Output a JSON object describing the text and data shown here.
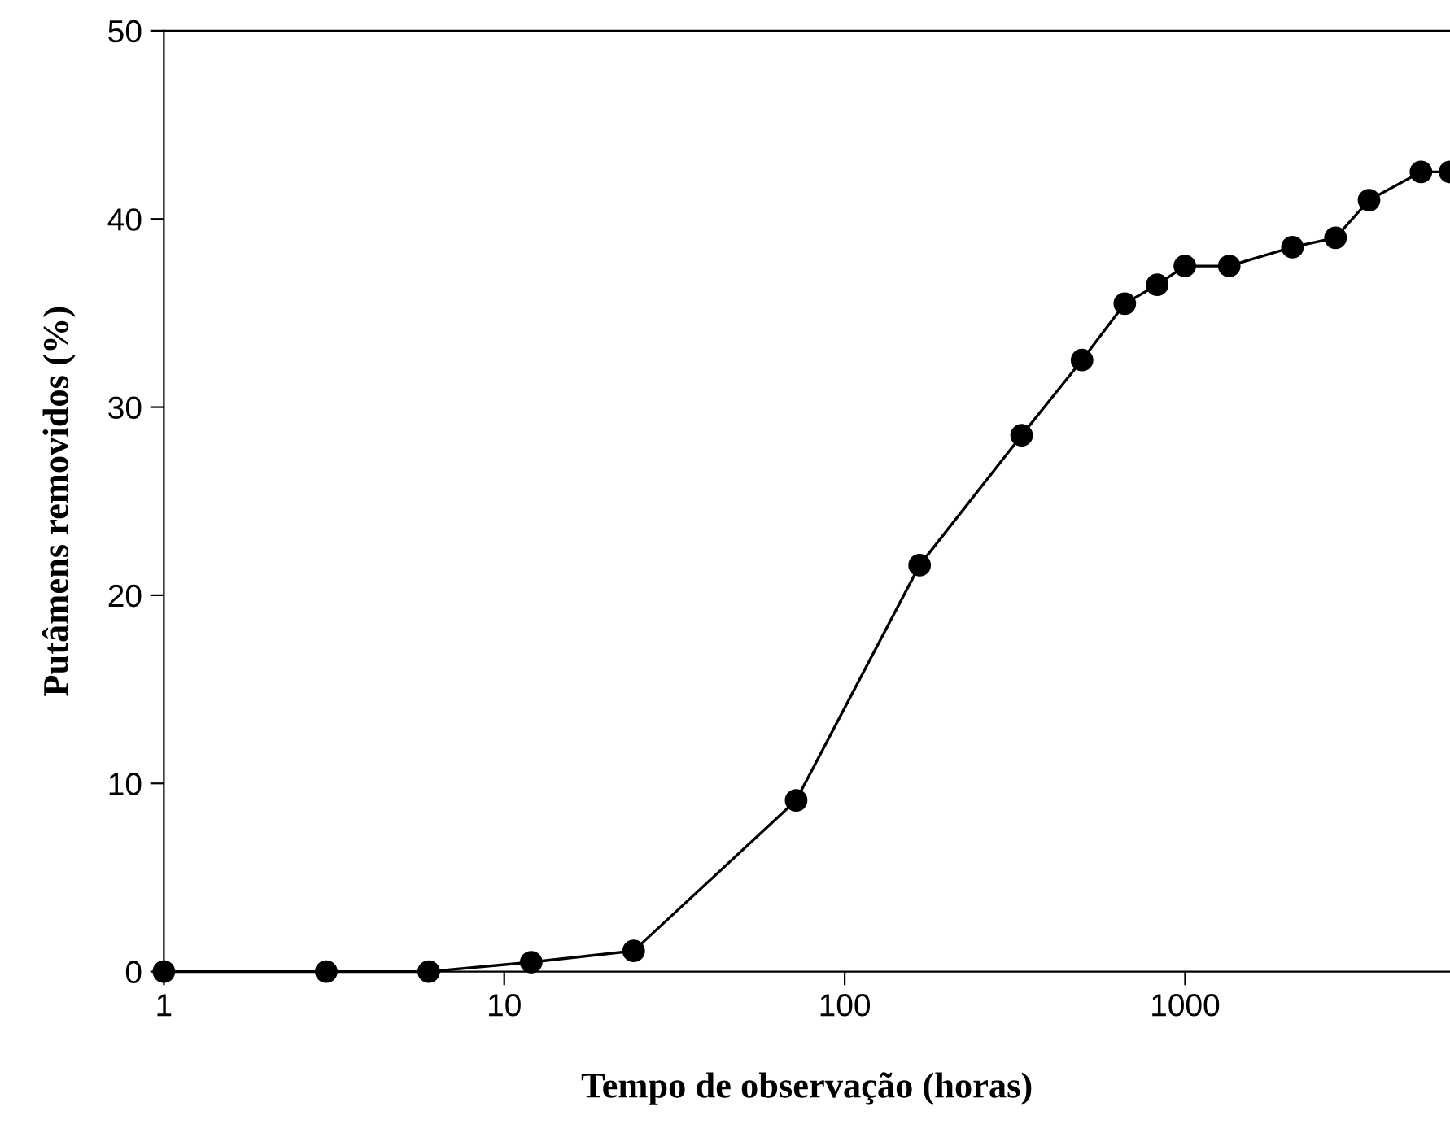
{
  "chart_data": {
    "type": "line",
    "xlabel": "Tempo de observação (horas)",
    "ylabel": "Putâmens removidos (%)",
    "x": [
      1,
      3,
      6,
      12,
      24,
      72,
      166,
      331,
      498,
      665,
      828,
      998,
      1348,
      2067,
      2766,
      3470,
      4930,
      6000
    ],
    "series": [
      {
        "color": "#000000",
        "values": [
          0,
          0,
          0,
          0.5,
          1.1,
          9.1,
          21.6,
          28.5,
          32.5,
          35.5,
          36.5,
          37.5,
          37.5,
          38.5,
          39.0,
          41.0,
          42.5,
          42.5
        ]
      }
    ],
    "log": "x",
    "xlim": [
      1,
      6000
    ],
    "xticks": [
      1,
      10,
      100,
      1000
    ],
    "ylim": [
      0,
      50
    ],
    "yticks": [
      0,
      10,
      20,
      30,
      40,
      50
    ],
    "marker": "circle",
    "line_style": "solid",
    "grid": false,
    "legend": false
  }
}
